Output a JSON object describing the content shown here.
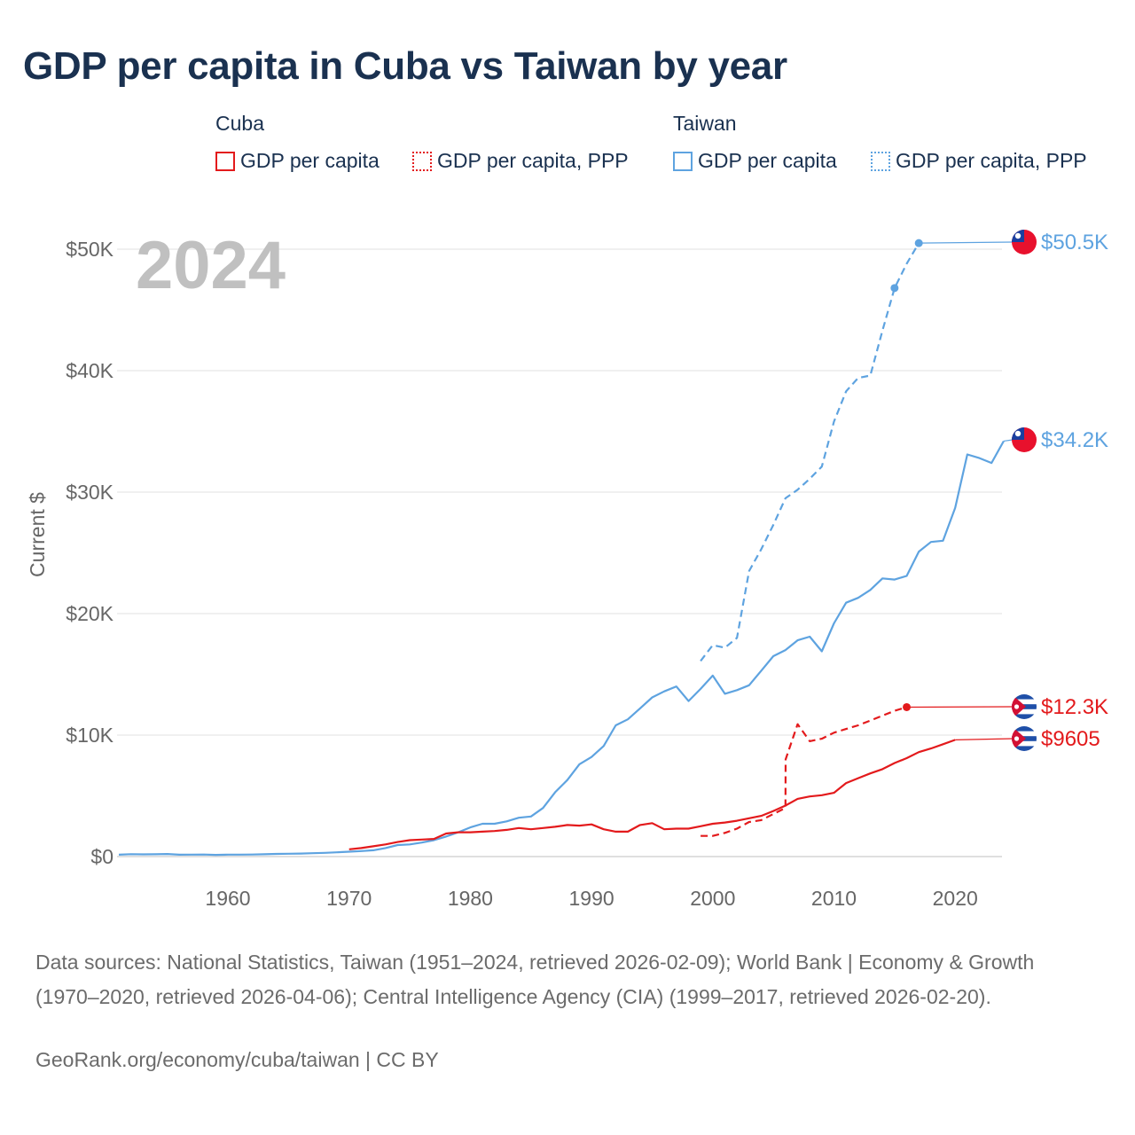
{
  "title": "GDP per capita in Cuba vs Taiwan by year",
  "legend": {
    "cuba_label": "Cuba",
    "taiwan_label": "Taiwan",
    "cuba_gdp": "GDP per capita",
    "cuba_ppp": "GDP per capita, PPP",
    "taiwan_gdp": "GDP per capita",
    "taiwan_ppp": "GDP per capita, PPP"
  },
  "colors": {
    "cuba": "#e31a1c",
    "taiwan": "#5ea3e0",
    "grid": "#e6e6e6",
    "axis": "#666666",
    "year_watermark": "#c0c0c0"
  },
  "chart_data": {
    "type": "line",
    "title": "GDP per capita in Cuba vs Taiwan by year",
    "xlabel": "",
    "ylabel": "Current $",
    "xlim": [
      1951,
      2024
    ],
    "ylim": [
      0,
      52000
    ],
    "x_ticks": [
      1960,
      1970,
      1980,
      1990,
      2000,
      2010,
      2020
    ],
    "x_tick_labels": [
      "1960",
      "1970",
      "1980",
      "1990",
      "2000",
      "2010",
      "2020"
    ],
    "y_ticks": [
      0,
      10000,
      20000,
      30000,
      40000,
      50000
    ],
    "y_tick_labels": [
      "$0",
      "$10K",
      "$20K",
      "$30K",
      "$40K",
      "$50K"
    ],
    "year_watermark": "2024",
    "series": [
      {
        "name": "Taiwan GDP per capita",
        "country": "taiwan",
        "style": "solid",
        "end_label": "$34.2K",
        "points": [
          [
            1951,
            150
          ],
          [
            1952,
            200
          ],
          [
            1953,
            180
          ],
          [
            1954,
            190
          ],
          [
            1955,
            210
          ],
          [
            1956,
            150
          ],
          [
            1957,
            160
          ],
          [
            1958,
            170
          ],
          [
            1959,
            140
          ],
          [
            1960,
            160
          ],
          [
            1961,
            160
          ],
          [
            1962,
            170
          ],
          [
            1963,
            190
          ],
          [
            1964,
            220
          ],
          [
            1965,
            230
          ],
          [
            1966,
            250
          ],
          [
            1967,
            280
          ],
          [
            1968,
            310
          ],
          [
            1969,
            350
          ],
          [
            1970,
            400
          ],
          [
            1971,
            450
          ],
          [
            1972,
            520
          ],
          [
            1973,
            700
          ],
          [
            1974,
            950
          ],
          [
            1975,
            1000
          ],
          [
            1976,
            1150
          ],
          [
            1977,
            1350
          ],
          [
            1978,
            1650
          ],
          [
            1979,
            2000
          ],
          [
            1980,
            2400
          ],
          [
            1981,
            2700
          ],
          [
            1982,
            2700
          ],
          [
            1983,
            2900
          ],
          [
            1984,
            3200
          ],
          [
            1985,
            3300
          ],
          [
            1986,
            4000
          ],
          [
            1987,
            5300
          ],
          [
            1988,
            6300
          ],
          [
            1989,
            7600
          ],
          [
            1990,
            8200
          ],
          [
            1991,
            9100
          ],
          [
            1992,
            10800
          ],
          [
            1993,
            11300
          ],
          [
            1994,
            12200
          ],
          [
            1995,
            13100
          ],
          [
            1996,
            13600
          ],
          [
            1997,
            14000
          ],
          [
            1998,
            12800
          ],
          [
            1999,
            13800
          ],
          [
            2000,
            14900
          ],
          [
            2001,
            13400
          ],
          [
            2002,
            13700
          ],
          [
            2003,
            14100
          ],
          [
            2004,
            15300
          ],
          [
            2005,
            16500
          ],
          [
            2006,
            17000
          ],
          [
            2007,
            17800
          ],
          [
            2008,
            18100
          ],
          [
            2009,
            16900
          ],
          [
            2010,
            19200
          ],
          [
            2011,
            20900
          ],
          [
            2012,
            21300
          ],
          [
            2013,
            21950
          ],
          [
            2014,
            22900
          ],
          [
            2015,
            22800
          ],
          [
            2016,
            23100
          ],
          [
            2017,
            25100
          ],
          [
            2018,
            25900
          ],
          [
            2019,
            26000
          ],
          [
            2020,
            28700
          ],
          [
            2021,
            33100
          ],
          [
            2022,
            32800
          ],
          [
            2023,
            32400
          ],
          [
            2024,
            34200
          ]
        ]
      },
      {
        "name": "Taiwan GDP per capita, PPP",
        "country": "taiwan",
        "style": "dashed",
        "end_label": "$50.5K",
        "marked_points": [
          [
            2015,
            46800
          ],
          [
            2017,
            50500
          ]
        ],
        "points": [
          [
            1999,
            16100
          ],
          [
            2000,
            17400
          ],
          [
            2001,
            17200
          ],
          [
            2002,
            18000
          ],
          [
            2003,
            23500
          ],
          [
            2004,
            25300
          ],
          [
            2005,
            27300
          ],
          [
            2006,
            29500
          ],
          [
            2007,
            30200
          ],
          [
            2008,
            31100
          ],
          [
            2009,
            32100
          ],
          [
            2010,
            35800
          ],
          [
            2011,
            38300
          ],
          [
            2012,
            39400
          ],
          [
            2013,
            39600
          ],
          [
            2014,
            43300
          ],
          [
            2015,
            46800
          ],
          [
            2016,
            48800
          ],
          [
            2017,
            50500
          ]
        ]
      },
      {
        "name": "Cuba GDP per capita",
        "country": "cuba",
        "style": "solid",
        "end_label": "$9605",
        "points": [
          [
            1970,
            600
          ],
          [
            1971,
            700
          ],
          [
            1972,
            850
          ],
          [
            1973,
            1000
          ],
          [
            1974,
            1200
          ],
          [
            1975,
            1350
          ],
          [
            1976,
            1400
          ],
          [
            1977,
            1450
          ],
          [
            1978,
            1900
          ],
          [
            1979,
            2000
          ],
          [
            1980,
            2000
          ],
          [
            1981,
            2050
          ],
          [
            1982,
            2100
          ],
          [
            1983,
            2200
          ],
          [
            1984,
            2350
          ],
          [
            1985,
            2250
          ],
          [
            1986,
            2350
          ],
          [
            1987,
            2450
          ],
          [
            1988,
            2600
          ],
          [
            1989,
            2550
          ],
          [
            1990,
            2650
          ],
          [
            1991,
            2250
          ],
          [
            1992,
            2050
          ],
          [
            1993,
            2050
          ],
          [
            1994,
            2600
          ],
          [
            1995,
            2750
          ],
          [
            1996,
            2250
          ],
          [
            1997,
            2300
          ],
          [
            1998,
            2300
          ],
          [
            1999,
            2500
          ],
          [
            2000,
            2700
          ],
          [
            2001,
            2800
          ],
          [
            2002,
            2950
          ],
          [
            2003,
            3150
          ],
          [
            2004,
            3350
          ],
          [
            2005,
            3750
          ],
          [
            2006,
            4200
          ],
          [
            2007,
            4750
          ],
          [
            2008,
            4950
          ],
          [
            2009,
            5050
          ],
          [
            2010,
            5250
          ],
          [
            2011,
            6050
          ],
          [
            2012,
            6450
          ],
          [
            2013,
            6850
          ],
          [
            2014,
            7200
          ],
          [
            2015,
            7700
          ],
          [
            2016,
            8100
          ],
          [
            2017,
            8600
          ],
          [
            2018,
            8900
          ],
          [
            2019,
            9250
          ],
          [
            2020,
            9605
          ]
        ]
      },
      {
        "name": "Cuba GDP per capita, PPP",
        "country": "cuba",
        "style": "dashed",
        "end_label": "$12.3K",
        "marked_points": [
          [
            2016,
            12300
          ]
        ],
        "points": [
          [
            1999,
            1700
          ],
          [
            2000,
            1700
          ],
          [
            2001,
            1950
          ],
          [
            2002,
            2300
          ],
          [
            2003,
            2850
          ],
          [
            2004,
            3000
          ],
          [
            2005,
            3500
          ],
          [
            2006,
            4000
          ],
          [
            2006.01,
            8000
          ],
          [
            2007,
            10900
          ],
          [
            2008,
            9500
          ],
          [
            2009,
            9700
          ],
          [
            2010,
            10200
          ],
          [
            2011,
            10500
          ],
          [
            2012,
            10800
          ],
          [
            2013,
            11200
          ],
          [
            2014,
            11600
          ],
          [
            2015,
            12000
          ],
          [
            2016,
            12300
          ]
        ]
      }
    ]
  },
  "footer": {
    "sources": "Data sources: National Statistics, Taiwan (1951–2024, retrieved 2026-02-09); World Bank | Economy & Growth (1970–2020, retrieved 2026-04-06); Central Intelligence Agency (CIA) (1999–2017, retrieved 2026-02-20).",
    "credit": "GeoRank.org/economy/cuba/taiwan | CC BY"
  },
  "flags": {
    "taiwan": "taiwan-flag-icon",
    "cuba": "cuba-flag-icon"
  }
}
